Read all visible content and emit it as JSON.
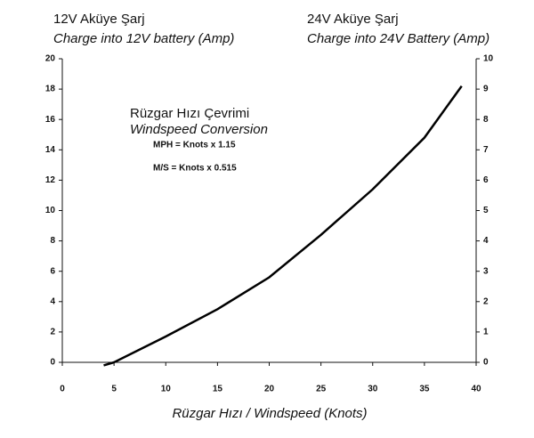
{
  "chart_data": {
    "type": "line",
    "y_label": [
      "12V Aküye Şarj",
      "Charge into 12V battery (Amp)"
    ],
    "y2_label": [
      "24V Aküye Şarj",
      "Charge into 24V Battery (Amp)"
    ],
    "x_label": "Rüzgar Hızı / Windspeed (Knots)",
    "annotations": [
      "Rüzgar Hızı Çevrimi",
      "Windspeed Conversion",
      "MPH = Knots x 1.15",
      "M/S = Knots x 0.515"
    ],
    "x": [
      4,
      5,
      10,
      15,
      20,
      25,
      30,
      35,
      38.6
    ],
    "series": [
      {
        "color": "#000000",
        "values": [
          -0.2,
          0,
          1.7,
          3.5,
          5.6,
          8.4,
          11.4,
          14.8,
          18.2
        ]
      }
    ],
    "xlim": [
      0,
      40
    ],
    "xticks": [
      0,
      5,
      10,
      15,
      20,
      25,
      30,
      35,
      40
    ],
    "ylim": [
      0,
      20
    ],
    "yticks": [
      0,
      2,
      4,
      6,
      8,
      10,
      12,
      14,
      16,
      18,
      20
    ],
    "y2lim": [
      0,
      10
    ],
    "y2ticks": [
      0,
      1,
      2,
      3,
      4,
      5,
      6,
      7,
      8,
      9,
      10
    ],
    "grid": false
  }
}
